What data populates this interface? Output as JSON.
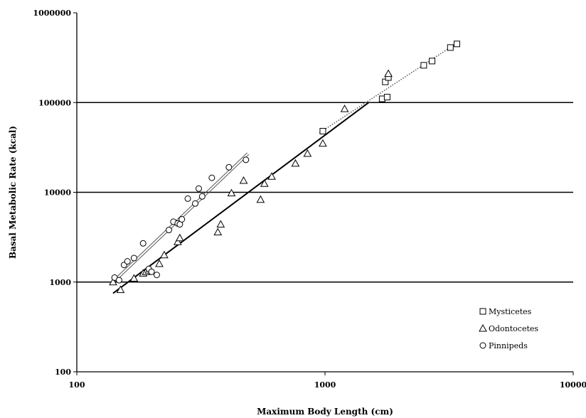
{
  "chart_data": {
    "type": "scatter",
    "x_scale": "log",
    "y_scale": "log",
    "xlim": [
      100,
      10000
    ],
    "ylim": [
      100,
      1000000
    ],
    "x_ticks": [
      "100",
      "1000",
      "10000"
    ],
    "y_ticks": [
      "100",
      "1000",
      "10000",
      "100000",
      "1000000"
    ],
    "xlabel": "Maximum Body Length (cm)",
    "ylabel": "Basal Metabolic Rate (kcal)",
    "grid": "horizontal major lines",
    "legend_position": "bottom-right",
    "series": [
      {
        "name": "Mysticetes",
        "marker": "square",
        "color": "#000000",
        "points": [
          [
            980,
            48000
          ],
          [
            1700,
            110000
          ],
          [
            1750,
            170000
          ],
          [
            1800,
            190000
          ],
          [
            1780,
            115000
          ],
          [
            2500,
            260000
          ],
          [
            2700,
            290000
          ],
          [
            3200,
            410000
          ],
          [
            3400,
            450000
          ]
        ],
        "fit": {
          "style": "dotted",
          "color": "#555555",
          "x": [
            950,
            3400
          ],
          "y": [
            46000,
            460000
          ]
        }
      },
      {
        "name": "Odontocetes",
        "marker": "triangle",
        "color": "#000000",
        "points": [
          [
            140,
            1000
          ],
          [
            150,
            820
          ],
          [
            170,
            1100
          ],
          [
            185,
            1250
          ],
          [
            190,
            1300
          ],
          [
            195,
            1350
          ],
          [
            215,
            1600
          ],
          [
            225,
            2000
          ],
          [
            255,
            2800
          ],
          [
            260,
            3100
          ],
          [
            370,
            3600
          ],
          [
            380,
            4400
          ],
          [
            420,
            9800
          ],
          [
            470,
            13500
          ],
          [
            550,
            8300
          ],
          [
            570,
            12500
          ],
          [
            610,
            15000
          ],
          [
            760,
            21000
          ],
          [
            850,
            27000
          ],
          [
            980,
            35000
          ],
          [
            1200,
            85000
          ],
          [
            1800,
            210000
          ]
        ],
        "fit": {
          "style": "solid",
          "color": "#000000",
          "x": [
            140,
            1500
          ],
          "y": [
            750,
            100000
          ]
        }
      },
      {
        "name": "Pinnipeds",
        "marker": "circle",
        "color": "#000000",
        "points": [
          [
            142,
            1120
          ],
          [
            148,
            1050
          ],
          [
            155,
            1550
          ],
          [
            160,
            1700
          ],
          [
            170,
            1850
          ],
          [
            185,
            2700
          ],
          [
            195,
            1400
          ],
          [
            200,
            1300
          ],
          [
            210,
            1200
          ],
          [
            235,
            3800
          ],
          [
            245,
            4700
          ],
          [
            255,
            4500
          ],
          [
            260,
            4400
          ],
          [
            265,
            5000
          ],
          [
            280,
            8500
          ],
          [
            300,
            7500
          ],
          [
            310,
            11000
          ],
          [
            320,
            9000
          ],
          [
            350,
            14500
          ],
          [
            410,
            19000
          ],
          [
            480,
            23000
          ]
        ],
        "fit": {
          "style": "double",
          "color": "#555555",
          "x": [
            140,
            490
          ],
          "y": [
            1000,
            27000
          ]
        }
      }
    ]
  }
}
